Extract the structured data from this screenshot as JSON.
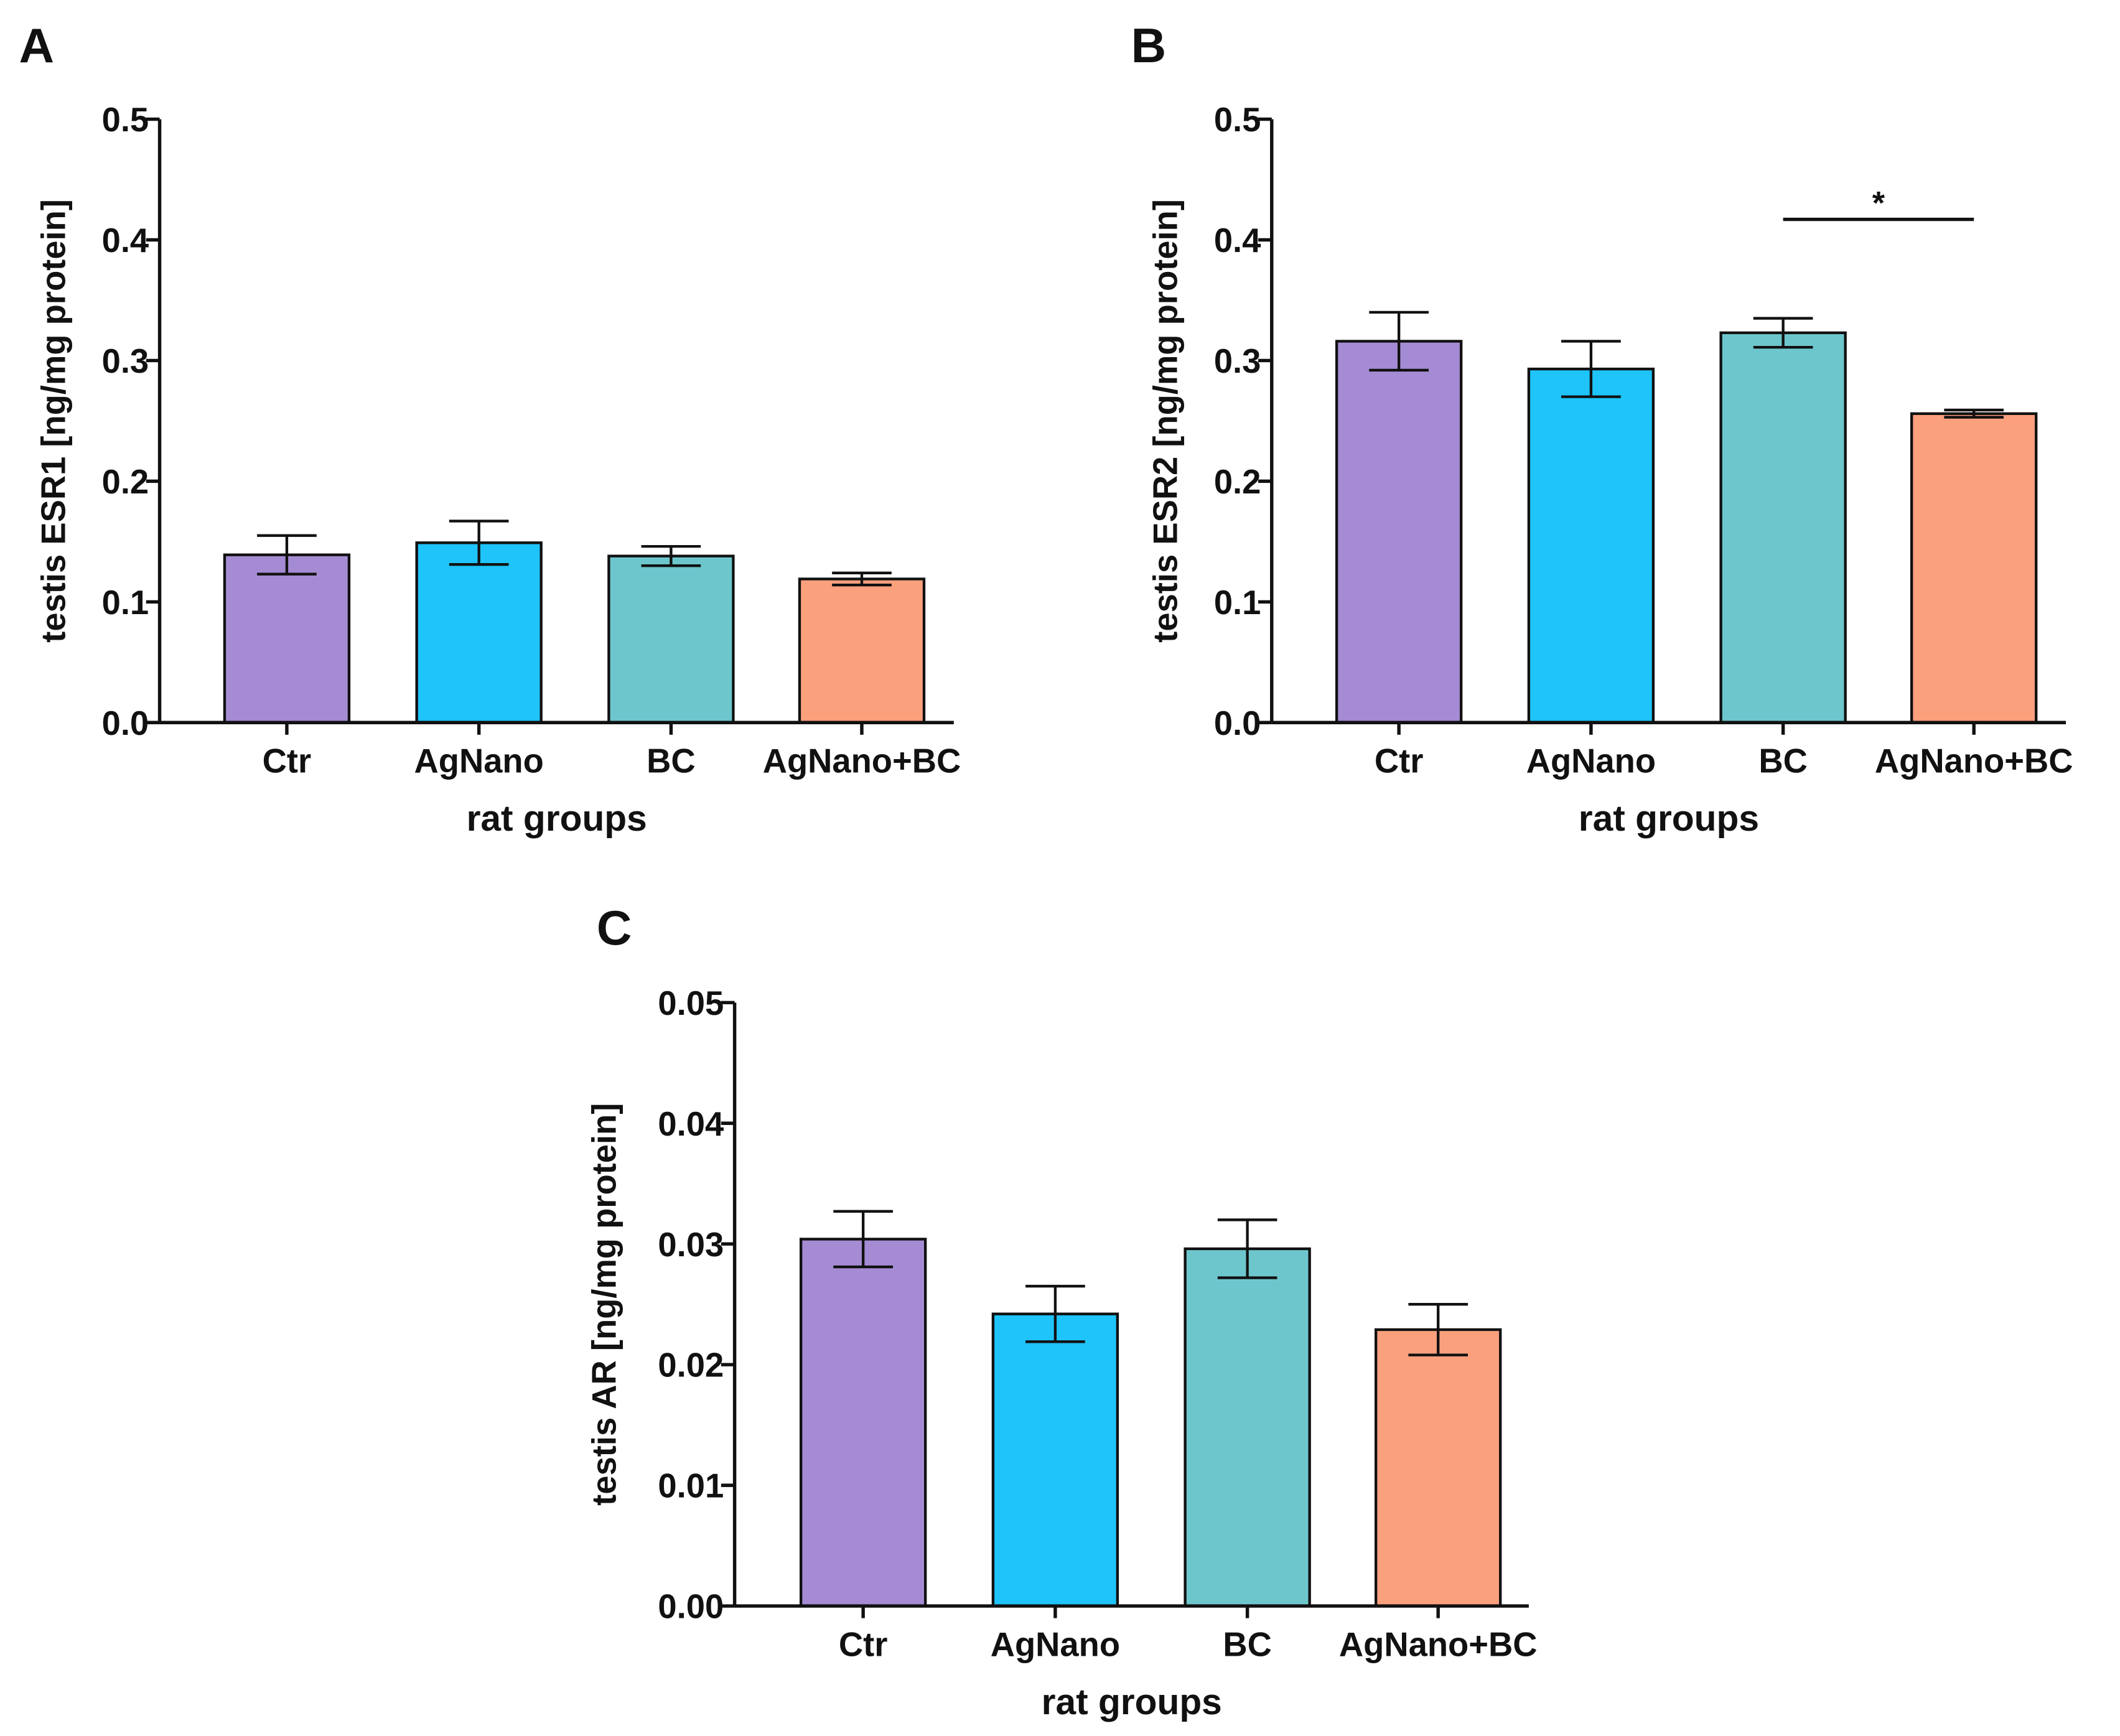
{
  "chart_data": [
    {
      "panel_label": "A",
      "type": "bar",
      "categories": [
        "Ctr",
        "AgNano",
        "BC",
        "AgNano+BC"
      ],
      "values": [
        0.139,
        0.149,
        0.138,
        0.119
      ],
      "errors": [
        0.016,
        0.018,
        0.008,
        0.005
      ],
      "colors": [
        "#A58BD3",
        "#1EC4FA",
        "#6EC6CD",
        "#FBA07D"
      ],
      "xlabel": "rat groups",
      "ylabel": "testis ESR1 [ng/mg protein]",
      "ylim": [
        0,
        0.5
      ],
      "yticks": [
        "0.0",
        "0.1",
        "0.2",
        "0.3",
        "0.4",
        "0.5"
      ],
      "ytick_values": [
        0,
        0.1,
        0.2,
        0.3,
        0.4,
        0.5
      ],
      "significance": []
    },
    {
      "panel_label": "B",
      "type": "bar",
      "categories": [
        "Ctr",
        "AgNano",
        "BC",
        "AgNano+BC"
      ],
      "values": [
        0.316,
        0.293,
        0.323,
        0.256
      ],
      "errors": [
        0.024,
        0.023,
        0.012,
        0.003
      ],
      "colors": [
        "#A58BD3",
        "#1EC4FA",
        "#6EC6CD",
        "#FBA07D"
      ],
      "xlabel": "rat groups",
      "ylabel": "testis ESR2 [ng/mg protein]",
      "ylim": [
        0,
        0.5
      ],
      "yticks": [
        "0.0",
        "0.1",
        "0.2",
        "0.3",
        "0.4",
        "0.5"
      ],
      "ytick_values": [
        0,
        0.1,
        0.2,
        0.3,
        0.4,
        0.5
      ],
      "significance": [
        {
          "from": 2,
          "to": 3,
          "y": 0.417,
          "label": "*"
        }
      ]
    },
    {
      "panel_label": "C",
      "type": "bar",
      "categories": [
        "Ctr",
        "AgNano",
        "BC",
        "AgNano+BC"
      ],
      "values": [
        0.0304,
        0.0242,
        0.0296,
        0.0229
      ],
      "errors": [
        0.0023,
        0.0023,
        0.0024,
        0.0021
      ],
      "colors": [
        "#A58BD3",
        "#1EC4FA",
        "#6EC6CD",
        "#FBA07D"
      ],
      "xlabel": "rat groups",
      "ylabel": "testis AR [ng/mg protein]",
      "ylim": [
        0,
        0.05
      ],
      "yticks": [
        "0.00",
        "0.01",
        "0.02",
        "0.03",
        "0.04",
        "0.05"
      ],
      "ytick_values": [
        0,
        0.01,
        0.02,
        0.03,
        0.04,
        0.05
      ],
      "significance": []
    }
  ]
}
